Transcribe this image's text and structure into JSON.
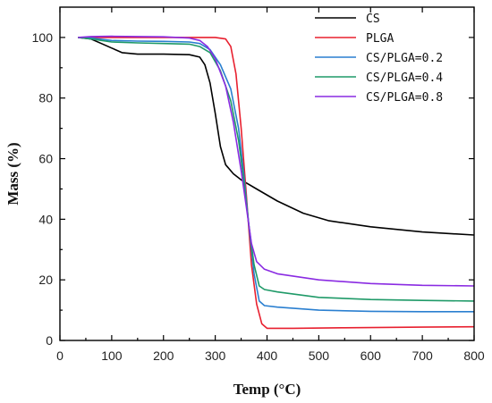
{
  "chart_data": {
    "type": "line",
    "xlabel": "Temp (°C)",
    "ylabel": "Mass (%)",
    "xlim": [
      0,
      800
    ],
    "ylim": [
      0,
      110
    ],
    "x_ticks": [
      0,
      100,
      200,
      300,
      400,
      500,
      600,
      700,
      800
    ],
    "y_ticks": [
      0,
      20,
      40,
      60,
      80,
      100
    ],
    "grid": false,
    "legend_position": "top-right",
    "series": [
      {
        "name": "CS",
        "color": "#000000",
        "points": [
          [
            35,
            100
          ],
          [
            60,
            99.5
          ],
          [
            80,
            98
          ],
          [
            100,
            96.5
          ],
          [
            120,
            95
          ],
          [
            150,
            94.5
          ],
          [
            200,
            94.5
          ],
          [
            250,
            94.3
          ],
          [
            270,
            93.5
          ],
          [
            280,
            91
          ],
          [
            290,
            85
          ],
          [
            300,
            75
          ],
          [
            310,
            64
          ],
          [
            320,
            58
          ],
          [
            335,
            55
          ],
          [
            350,
            53
          ],
          [
            380,
            50
          ],
          [
            420,
            46
          ],
          [
            470,
            42
          ],
          [
            520,
            39.5
          ],
          [
            600,
            37.5
          ],
          [
            700,
            35.8
          ],
          [
            800,
            34.8
          ]
        ]
      },
      {
        "name": "PLGA",
        "color": "#e8202f",
        "points": [
          [
            35,
            100
          ],
          [
            100,
            100
          ],
          [
            200,
            100
          ],
          [
            300,
            100
          ],
          [
            320,
            99.5
          ],
          [
            330,
            97
          ],
          [
            340,
            88
          ],
          [
            350,
            70
          ],
          [
            360,
            48
          ],
          [
            370,
            25
          ],
          [
            380,
            12
          ],
          [
            390,
            5.5
          ],
          [
            400,
            4
          ],
          [
            450,
            4
          ],
          [
            550,
            4.2
          ],
          [
            700,
            4.4
          ],
          [
            800,
            4.5
          ]
        ]
      },
      {
        "name": "CS/PLGA=0.2",
        "color": "#2a7fd0",
        "points": [
          [
            35,
            100
          ],
          [
            60,
            99.8
          ],
          [
            100,
            99
          ],
          [
            150,
            98.8
          ],
          [
            200,
            98.7
          ],
          [
            250,
            98.5
          ],
          [
            270,
            98
          ],
          [
            290,
            96
          ],
          [
            310,
            91
          ],
          [
            330,
            83
          ],
          [
            345,
            70
          ],
          [
            355,
            55
          ],
          [
            365,
            38
          ],
          [
            375,
            22
          ],
          [
            385,
            13
          ],
          [
            395,
            11.5
          ],
          [
            420,
            11
          ],
          [
            500,
            10
          ],
          [
            600,
            9.6
          ],
          [
            700,
            9.5
          ],
          [
            800,
            9.5
          ]
        ]
      },
      {
        "name": "CS/PLGA=0.4",
        "color": "#1f9a68",
        "points": [
          [
            35,
            100
          ],
          [
            60,
            99.5
          ],
          [
            100,
            98.5
          ],
          [
            150,
            98.2
          ],
          [
            200,
            98
          ],
          [
            250,
            97.8
          ],
          [
            270,
            97
          ],
          [
            290,
            95
          ],
          [
            310,
            89
          ],
          [
            330,
            79
          ],
          [
            345,
            66
          ],
          [
            355,
            53
          ],
          [
            365,
            38
          ],
          [
            375,
            25
          ],
          [
            385,
            18
          ],
          [
            395,
            16.8
          ],
          [
            420,
            16
          ],
          [
            500,
            14.2
          ],
          [
            600,
            13.5
          ],
          [
            700,
            13.2
          ],
          [
            800,
            13
          ]
        ]
      },
      {
        "name": "CS/PLGA=0.8",
        "color": "#8a2be2",
        "points": [
          [
            35,
            100
          ],
          [
            60,
            100.3
          ],
          [
            100,
            100.4
          ],
          [
            150,
            100.3
          ],
          [
            200,
            100.2
          ],
          [
            250,
            99.8
          ],
          [
            270,
            99
          ],
          [
            285,
            97
          ],
          [
            300,
            93
          ],
          [
            320,
            84
          ],
          [
            335,
            72
          ],
          [
            350,
            56
          ],
          [
            360,
            44
          ],
          [
            370,
            32
          ],
          [
            380,
            26
          ],
          [
            395,
            23.5
          ],
          [
            420,
            22
          ],
          [
            500,
            20
          ],
          [
            600,
            18.8
          ],
          [
            700,
            18.2
          ],
          [
            800,
            18
          ]
        ]
      }
    ]
  }
}
